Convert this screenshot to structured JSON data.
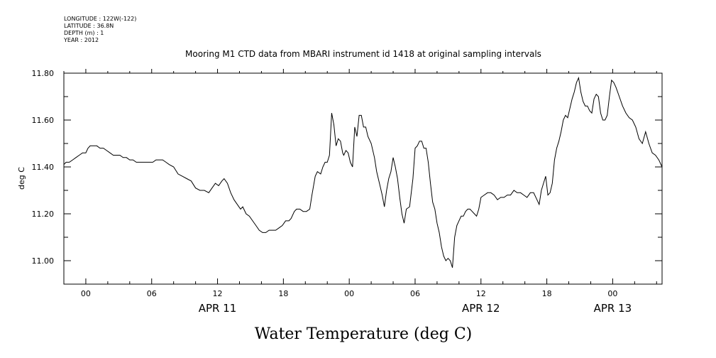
{
  "header": {
    "longitude": "LONGITUDE : 122W(-122)",
    "latitude": "LATITUDE : 36.8N",
    "depth": "DEPTH (m) : 1",
    "year": "YEAR : 2012"
  },
  "chart_data": {
    "type": "line",
    "title": "Mooring M1 CTD data from MBARI instrument id 1418 at original sampling intervals",
    "ylabel": "deg C",
    "xlabel": "Water Temperature (deg C)",
    "x_unit": "hours since APR 11 00:00",
    "xlim": [
      -2,
      52.5
    ],
    "ylim": [
      10.9,
      11.8
    ],
    "y_ticks": [
      "11.80",
      "11.60",
      "11.40",
      "11.20",
      "11.00"
    ],
    "y_tick_values": [
      11.8,
      11.6,
      11.4,
      11.2,
      11.0
    ],
    "x_tick_labels": [
      "00",
      "06",
      "12",
      "18",
      "00",
      "06",
      "12",
      "18",
      "00"
    ],
    "x_tick_values": [
      0,
      6,
      12,
      18,
      24,
      30,
      36,
      42,
      48
    ],
    "date_labels": [
      "APR 11",
      "APR 12",
      "APR 13"
    ],
    "date_positions": [
      12,
      36,
      48
    ],
    "series": [
      {
        "x": [
          -2.0,
          -1.8,
          -1.5,
          -1.2,
          -0.9,
          -0.6,
          -0.3,
          0.0,
          0.2,
          0.4,
          0.7,
          1.0,
          1.3,
          1.6,
          1.9,
          2.2,
          2.5,
          2.8,
          3.1,
          3.4,
          3.7,
          4.0,
          4.3,
          4.6,
          5.0,
          5.4,
          5.8,
          6.1,
          6.4,
          6.7,
          7.0,
          7.3,
          7.6,
          8.0,
          8.4,
          8.8,
          9.2,
          9.6,
          10.0,
          10.4,
          10.8,
          11.2,
          11.5,
          11.8,
          12.1,
          12.4,
          12.6,
          12.9,
          13.2,
          13.5,
          13.8,
          14.1,
          14.3,
          14.6,
          14.9,
          15.2,
          15.5,
          15.8,
          16.1,
          16.4,
          16.7,
          17.0,
          17.3,
          17.6,
          17.9,
          18.2,
          18.5,
          18.7,
          19.0,
          19.2,
          19.5,
          19.8,
          20.1,
          20.4,
          20.6,
          20.9,
          21.1,
          21.4,
          21.6,
          21.8,
          22.0,
          22.2,
          22.4,
          22.6,
          22.8,
          23.0,
          23.2,
          23.4,
          23.5,
          23.7,
          23.9,
          24.1,
          24.3,
          24.5,
          24.7,
          24.9,
          25.1,
          25.3,
          25.5,
          25.7,
          26.0,
          26.3,
          26.5,
          26.8,
          27.0,
          27.2,
          27.4,
          27.6,
          27.8,
          28.0,
          28.2,
          28.4,
          28.6,
          28.8,
          29.0,
          29.2,
          29.5,
          29.8,
          30.0,
          30.2,
          30.4,
          30.6,
          30.8,
          31.0,
          31.2,
          31.4,
          31.6,
          31.8,
          32.0,
          32.2,
          32.4,
          32.6,
          32.8,
          33.0,
          33.2,
          33.4,
          33.6,
          33.8,
          34.0,
          34.2,
          34.4,
          34.6,
          34.8,
          35.0,
          35.2,
          35.4,
          35.6,
          35.8,
          36.0,
          36.3,
          36.6,
          36.9,
          37.2,
          37.5,
          37.8,
          38.1,
          38.4,
          38.7,
          39.0,
          39.3,
          39.6,
          39.9,
          40.2,
          40.5,
          40.8,
          41.1,
          41.3,
          41.5,
          41.7,
          41.9,
          42.1,
          42.3,
          42.5,
          42.7,
          42.9,
          43.1,
          43.3,
          43.5,
          43.7,
          43.9,
          44.1,
          44.3,
          44.5,
          44.7,
          44.9,
          45.1,
          45.3,
          45.5,
          45.7,
          45.9,
          46.1,
          46.3,
          46.5,
          46.7,
          46.9,
          47.1,
          47.3,
          47.5,
          47.7,
          47.9,
          48.1,
          48.3,
          48.6,
          48.9,
          49.2,
          49.5,
          49.8,
          50.1,
          50.4,
          50.7,
          51.0,
          51.3,
          51.6,
          51.9,
          52.2,
          52.5
        ],
        "y": [
          11.41,
          11.42,
          11.42,
          11.43,
          11.44,
          11.45,
          11.46,
          11.46,
          11.48,
          11.49,
          11.49,
          11.49,
          11.48,
          11.48,
          11.47,
          11.46,
          11.45,
          11.45,
          11.45,
          11.44,
          11.44,
          11.43,
          11.43,
          11.42,
          11.42,
          11.42,
          11.42,
          11.42,
          11.43,
          11.43,
          11.43,
          11.42,
          11.41,
          11.4,
          11.37,
          11.36,
          11.35,
          11.34,
          11.31,
          11.3,
          11.3,
          11.29,
          11.31,
          11.33,
          11.32,
          11.34,
          11.35,
          11.33,
          11.29,
          11.26,
          11.24,
          11.22,
          11.23,
          11.2,
          11.19,
          11.17,
          11.15,
          11.13,
          11.12,
          11.12,
          11.13,
          11.13,
          11.13,
          11.14,
          11.15,
          11.17,
          11.17,
          11.18,
          11.21,
          11.22,
          11.22,
          11.21,
          11.21,
          11.22,
          11.28,
          11.36,
          11.38,
          11.37,
          11.4,
          11.42,
          11.42,
          11.45,
          11.63,
          11.58,
          11.49,
          11.52,
          11.51,
          11.46,
          11.45,
          11.47,
          11.46,
          11.42,
          11.4,
          11.57,
          11.53,
          11.62,
          11.62,
          11.57,
          11.57,
          11.53,
          11.5,
          11.44,
          11.38,
          11.32,
          11.28,
          11.23,
          11.3,
          11.35,
          11.38,
          11.44,
          11.4,
          11.35,
          11.27,
          11.2,
          11.16,
          11.22,
          11.23,
          11.35,
          11.48,
          11.49,
          11.51,
          11.51,
          11.48,
          11.48,
          11.42,
          11.33,
          11.25,
          11.22,
          11.16,
          11.12,
          11.06,
          11.02,
          11.0,
          11.01,
          11.0,
          10.97,
          11.1,
          11.15,
          11.17,
          11.19,
          11.19,
          11.21,
          11.22,
          11.22,
          11.21,
          11.2,
          11.19,
          11.22,
          11.27,
          11.28,
          11.29,
          11.29,
          11.28,
          11.26,
          11.27,
          11.27,
          11.28,
          11.28,
          11.3,
          11.29,
          11.29,
          11.28,
          11.27,
          11.29,
          11.29,
          11.26,
          11.24,
          11.3,
          11.33,
          11.36,
          11.28,
          11.29,
          11.33,
          11.43,
          11.48,
          11.51,
          11.55,
          11.6,
          11.62,
          11.61,
          11.65,
          11.69,
          11.72,
          11.76,
          11.78,
          11.72,
          11.68,
          11.66,
          11.66,
          11.64,
          11.63,
          11.69,
          11.71,
          11.7,
          11.63,
          11.6,
          11.6,
          11.62,
          11.7,
          11.77,
          11.76,
          11.74,
          11.7,
          11.66,
          11.63,
          11.61,
          11.6,
          11.57,
          11.52,
          11.5,
          11.55,
          11.5,
          11.46,
          11.45,
          11.43,
          11.4
        ]
      }
    ]
  }
}
